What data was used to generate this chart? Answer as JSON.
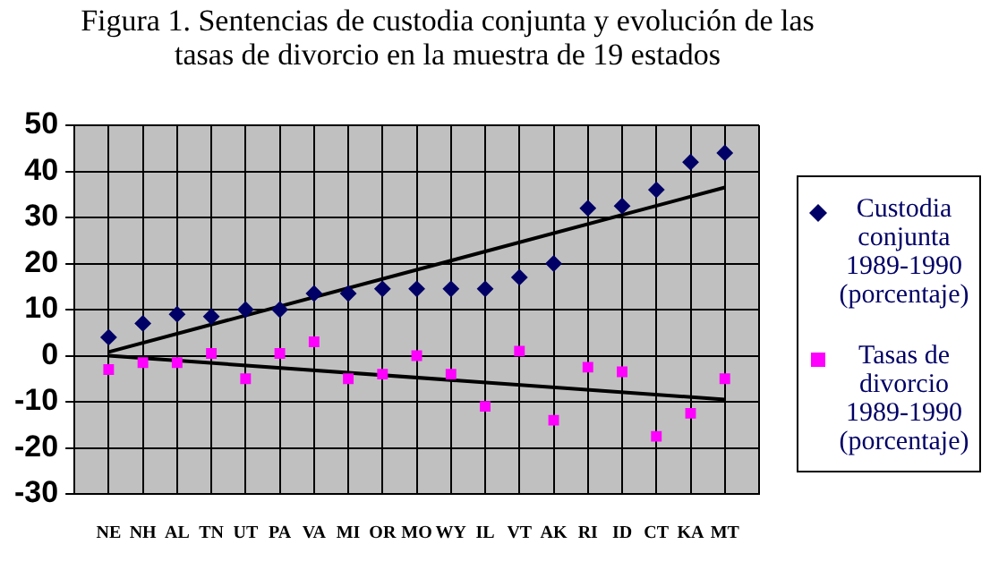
{
  "chart_data": {
    "type": "scatter",
    "title": "Figura 1. Sentencias de custodia conjunta y evolución de las tasas de divorcio en la muestra de 19 estados",
    "categories": [
      "NE",
      "NH",
      "AL",
      "TN",
      "UT",
      "PA",
      "VA",
      "MI",
      "OR",
      "MO",
      "WY",
      "IL",
      "VT",
      "AK",
      "RI",
      "ID",
      "CT",
      "KA",
      "MT"
    ],
    "series": [
      {
        "name": "Custodia conjunta 1989-1990 (porcentaje)",
        "color": "#000066",
        "marker": "diamond",
        "values": [
          4,
          7,
          9,
          8.5,
          10,
          10,
          13.5,
          13.5,
          14.5,
          14.5,
          14.5,
          14.5,
          17,
          20,
          32,
          32.5,
          36,
          42,
          44
        ]
      },
      {
        "name": "Tasas de divorcio 1989-1990 (porcentaje)",
        "color": "#ff00ff",
        "marker": "square",
        "values": [
          -3,
          -1.5,
          -1.5,
          0.5,
          -5,
          0.5,
          3,
          -5,
          -4,
          0,
          -4,
          -11,
          1,
          -14,
          -2.5,
          -3.5,
          -17.5,
          -12.5,
          -5
        ]
      },
      {
        "type": "line",
        "color": "#000000",
        "x": [
          "NE",
          "MT"
        ],
        "values": [
          0.8,
          36.5
        ]
      },
      {
        "type": "line",
        "color": "#000000",
        "x": [
          "NE",
          "MT"
        ],
        "values": [
          0,
          -9.5
        ]
      }
    ],
    "ylim": [
      -30,
      50
    ],
    "yticks": [
      -30,
      -20,
      -10,
      0,
      10,
      20,
      30,
      40,
      50
    ],
    "grid": true,
    "legend": "right"
  }
}
